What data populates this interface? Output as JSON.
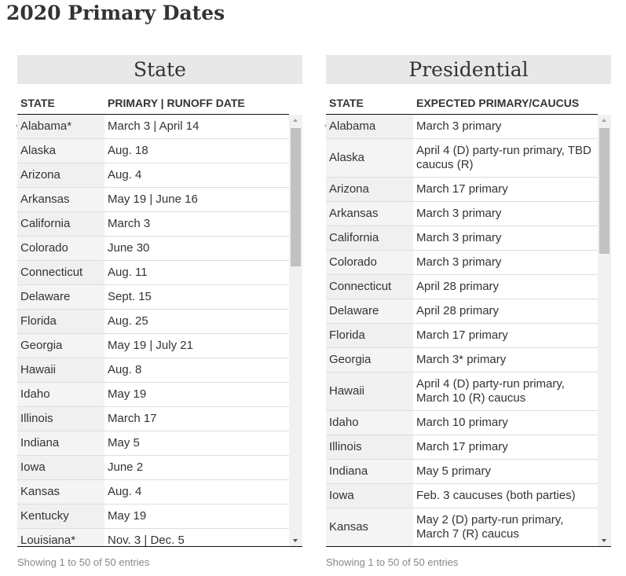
{
  "header": {
    "title": "2020 Primary Dates"
  },
  "tables": [
    {
      "heading": "State",
      "columns": [
        "STATE",
        "PRIMARY | RUNOFF DATE"
      ],
      "rows": [
        [
          "Alabama*",
          "March 3 | April 14"
        ],
        [
          "Alaska",
          "Aug. 18"
        ],
        [
          "Arizona",
          "Aug. 4"
        ],
        [
          "Arkansas",
          "May 19 | June 16"
        ],
        [
          "California",
          "March 3"
        ],
        [
          "Colorado",
          "June 30"
        ],
        [
          "Connecticut",
          "Aug. 11"
        ],
        [
          "Delaware",
          "Sept. 15"
        ],
        [
          "Florida",
          "Aug. 25"
        ],
        [
          "Georgia",
          "May 19 | July 21"
        ],
        [
          "Hawaii",
          "Aug. 8"
        ],
        [
          "Idaho",
          "May 19"
        ],
        [
          "Illinois",
          "March 17"
        ],
        [
          "Indiana",
          "May 5"
        ],
        [
          "Iowa",
          "June 2"
        ],
        [
          "Kansas",
          "Aug. 4"
        ],
        [
          "Kentucky",
          "May 19"
        ],
        [
          "Louisiana*",
          "Nov. 3 | Dec. 5"
        ]
      ],
      "footer": "Showing 1 to 50 of 50 entries"
    },
    {
      "heading": "Presidential",
      "columns": [
        "STATE",
        "EXPECTED PRIMARY/CAUCUS"
      ],
      "rows": [
        [
          "Alabama",
          "March 3 primary"
        ],
        [
          "Alaska",
          "April 4 (D) party-run primary, TBD caucus (R)"
        ],
        [
          "Arizona",
          "March 17 primary"
        ],
        [
          "Arkansas",
          "March 3 primary"
        ],
        [
          "California",
          "March 3 primary"
        ],
        [
          "Colorado",
          "March 3 primary"
        ],
        [
          "Connecticut",
          "April 28 primary"
        ],
        [
          "Delaware",
          "April 28 primary"
        ],
        [
          "Florida",
          "March 17 primary"
        ],
        [
          "Georgia",
          "March 3* primary"
        ],
        [
          "Hawaii",
          "April 4 (D) party-run primary, March 10 (R) caucus"
        ],
        [
          "Idaho",
          "March 10 primary"
        ],
        [
          "Illinois",
          "March 17 primary"
        ],
        [
          "Indiana",
          "May 5 primary"
        ],
        [
          "Iowa",
          "Feb. 3 caucuses (both parties)"
        ],
        [
          "Kansas",
          "May 2 (D) party-run primary, March 7 (R) caucus"
        ]
      ],
      "footer": "Showing 1 to 50 of 50 entries"
    }
  ]
}
